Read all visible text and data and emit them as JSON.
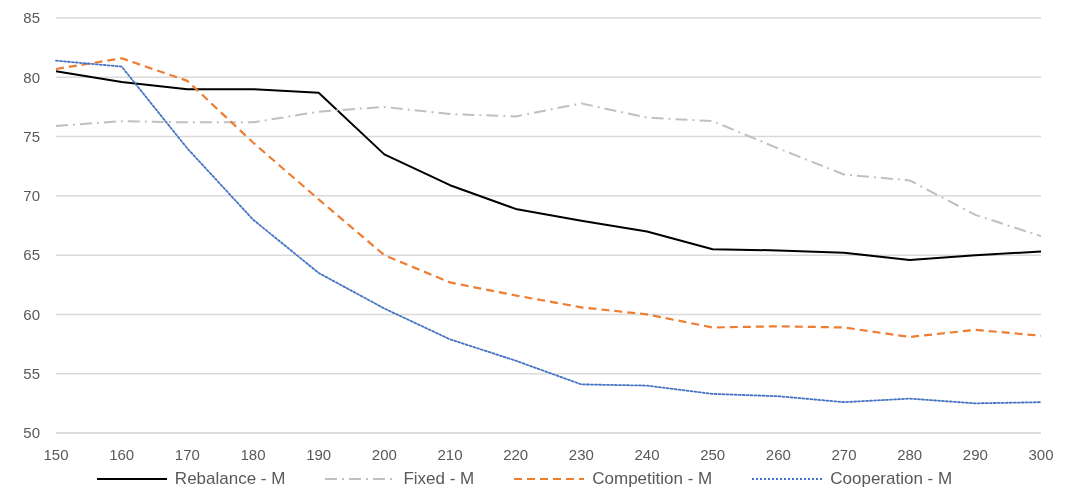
{
  "chart_data": {
    "type": "line",
    "categories": [
      "150",
      "160",
      "170",
      "180",
      "190",
      "200",
      "210",
      "220",
      "230",
      "240",
      "250",
      "260",
      "270",
      "280",
      "290",
      "300"
    ],
    "series": [
      {
        "name": "Rebalance - M",
        "color": "#000000",
        "line_style": "solid",
        "values": [
          80.5,
          79.6,
          79.0,
          79.0,
          78.7,
          73.5,
          70.9,
          68.9,
          67.9,
          67.0,
          65.5,
          65.4,
          65.2,
          64.6,
          65.0,
          65.3
        ]
      },
      {
        "name": "Fixed - M",
        "color": "#c0c0c0",
        "line_style": "dashdot",
        "values": [
          75.9,
          76.3,
          76.2,
          76.2,
          77.1,
          77.5,
          76.9,
          76.7,
          77.8,
          76.6,
          76.3,
          74.0,
          71.8,
          71.3,
          68.4,
          66.6
        ]
      },
      {
        "name": "Competition - M",
        "color": "#ed7d31",
        "line_style": "dashed",
        "values": [
          80.7,
          81.6,
          79.7,
          74.5,
          69.7,
          65.0,
          62.7,
          61.6,
          60.6,
          60.0,
          58.9,
          59.0,
          58.9,
          58.1,
          58.7,
          58.2
        ]
      },
      {
        "name": "Cooperation - M",
        "color": "#4472c4",
        "line_style": "dotted",
        "values": [
          81.4,
          80.9,
          74.0,
          68.0,
          63.5,
          60.5,
          57.9,
          56.1,
          54.1,
          54.0,
          53.3,
          53.1,
          52.6,
          52.9,
          52.5,
          52.6
        ]
      }
    ],
    "ylim": [
      50,
      85
    ],
    "yticks": [
      50,
      55,
      60,
      65,
      70,
      75,
      80,
      85
    ],
    "grid": "y",
    "legend": "bottom",
    "marker": "none"
  }
}
